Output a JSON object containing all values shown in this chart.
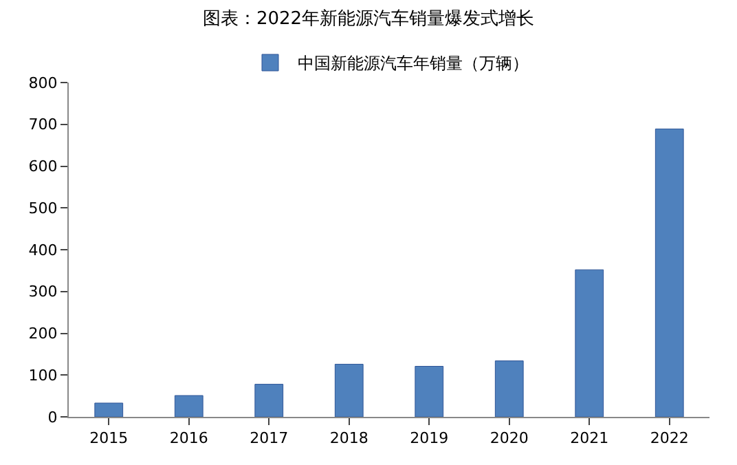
{
  "chart_data": {
    "type": "bar",
    "title": "图表：2022年新能源汽车销量爆发式增长",
    "categories": [
      "2015",
      "2016",
      "2017",
      "2018",
      "2019",
      "2020",
      "2021",
      "2022"
    ],
    "series": [
      {
        "name": "中国新能源汽车年销量（万辆）",
        "color": "#4f81bd",
        "values": [
          33,
          51,
          78,
          126,
          121,
          134,
          352,
          689
        ]
      }
    ],
    "ylim": [
      0,
      800
    ],
    "yticks": [
      0,
      100,
      200,
      300,
      400,
      500,
      600,
      700,
      800
    ],
    "legend": "top"
  }
}
